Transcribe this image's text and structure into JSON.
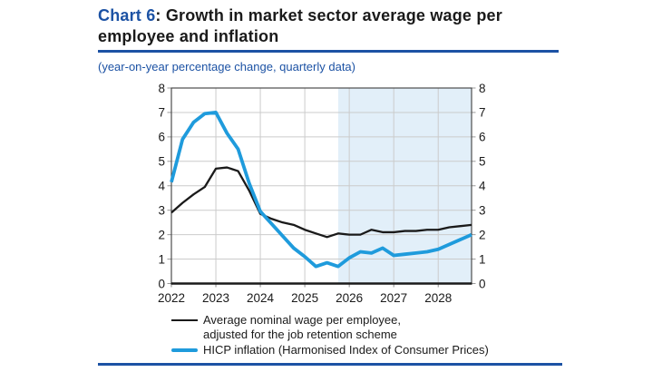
{
  "header": {
    "chart_label": "Chart 6",
    "title_rest": ": Growth in market sector average wage per employee and inflation",
    "subtitle": "(year-on-year percentage change, quarterly data)"
  },
  "colors": {
    "brand_blue": "#1C52A4",
    "wage_line": "#1A1A1A",
    "hicp_line": "#1F9BDC",
    "projection_shading": "#E2EFF9",
    "gridline": "#CBCBCB",
    "frame": "#3D3D3D"
  },
  "legend": {
    "wage": {
      "line1": "Average nominal wage per employee,",
      "line2": "adjusted for the job retention scheme"
    },
    "hicp": {
      "label": "HICP inflation (Harmonised Index of Consumer Prices)"
    }
  },
  "chart_data": {
    "type": "line",
    "x_unit": "quarterly",
    "x": [
      "2022-Q1",
      "2022-Q2",
      "2022-Q3",
      "2022-Q4",
      "2023-Q1",
      "2023-Q2",
      "2023-Q3",
      "2023-Q4",
      "2024-Q1",
      "2024-Q2",
      "2024-Q3",
      "2024-Q4",
      "2025-Q1",
      "2025-Q2",
      "2025-Q3",
      "2025-Q4",
      "2026-Q1",
      "2026-Q2",
      "2026-Q3",
      "2026-Q4",
      "2027-Q1",
      "2027-Q2",
      "2027-Q3",
      "2027-Q4",
      "2028-Q1",
      "2028-Q2",
      "2028-Q3",
      "2028-Q4"
    ],
    "x_tick_labels": [
      "2022",
      "2023",
      "2024",
      "2025",
      "2026",
      "2027",
      "2028"
    ],
    "y_ticks": [
      0,
      1,
      2,
      3,
      4,
      5,
      6,
      7,
      8
    ],
    "ylim": [
      0,
      8
    ],
    "y_axis_sides": "both",
    "grid": true,
    "projection_shading_start": "2025-Q4",
    "series": [
      {
        "name": "Average nominal wage per employee, adjusted for the job retention scheme",
        "color": "#1A1A1A",
        "values": [
          2.9,
          3.3,
          3.65,
          3.95,
          4.7,
          4.75,
          4.6,
          3.8,
          2.85,
          2.65,
          2.5,
          2.4,
          2.2,
          2.05,
          1.9,
          2.05,
          2.0,
          2.0,
          2.2,
          2.1,
          2.1,
          2.15,
          2.15,
          2.2,
          2.2,
          2.3,
          2.35,
          2.4
        ]
      },
      {
        "name": "HICP inflation (Harmonised Index of Consumer Prices)",
        "color": "#1F9BDC",
        "values": [
          4.15,
          5.9,
          6.6,
          6.95,
          7.0,
          6.15,
          5.5,
          4.1,
          2.95,
          2.45,
          1.95,
          1.45,
          1.1,
          0.7,
          0.85,
          0.7,
          1.05,
          1.3,
          1.25,
          1.45,
          1.15,
          1.2,
          1.25,
          1.3,
          1.4,
          1.6,
          1.8,
          2.0
        ]
      }
    ],
    "legend_position": "bottom"
  }
}
